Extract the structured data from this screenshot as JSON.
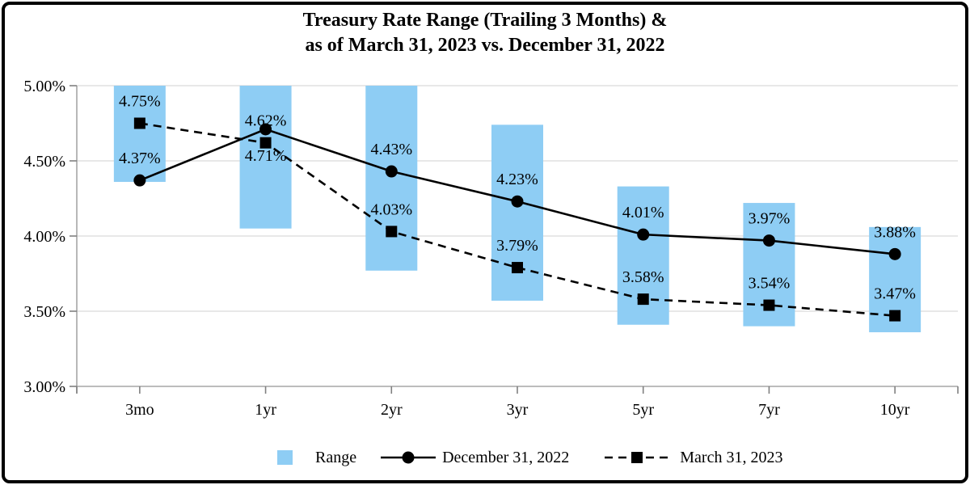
{
  "chart_data": {
    "type": "bar",
    "subtype": "range-bars-with-lines",
    "title_lines": [
      "Treasury Rate Range (Trailing 3 Months) &",
      "as of March 31, 2023 vs. December 31, 2022"
    ],
    "categories": [
      "3mo",
      "1yr",
      "2yr",
      "3yr",
      "5yr",
      "7yr",
      "10yr"
    ],
    "y_axis": {
      "min": 3.0,
      "max": 5.0,
      "step": 0.5,
      "tick_labels": [
        "5.00%",
        "4.50%",
        "4.00%",
        "3.50%",
        "3.00%"
      ],
      "grid": true
    },
    "range_series": {
      "name": "Range",
      "low": [
        4.36,
        4.05,
        3.77,
        3.57,
        3.41,
        3.4,
        3.36
      ],
      "high": [
        5.0,
        5.0,
        5.0,
        4.74,
        4.33,
        4.22,
        4.06
      ]
    },
    "series": [
      {
        "name": "December 31, 2022",
        "line_style": "solid",
        "marker": "circle",
        "values": [
          4.37,
          4.71,
          4.43,
          4.23,
          4.01,
          3.97,
          3.88
        ],
        "labels": [
          "4.37%",
          "4.71%",
          "4.43%",
          "4.23%",
          "4.01%",
          "3.97%",
          "3.88%"
        ],
        "label_placement": [
          "above",
          "below",
          "above",
          "above",
          "above",
          "above",
          "above"
        ]
      },
      {
        "name": "March 31, 2023",
        "line_style": "dashed",
        "marker": "square",
        "values": [
          4.75,
          4.62,
          4.03,
          3.79,
          3.58,
          3.54,
          3.47
        ],
        "labels": [
          "4.75%",
          "4.62%",
          "4.03%",
          "3.79%",
          "3.58%",
          "3.54%",
          "3.47%"
        ],
        "label_placement": [
          "above",
          "above",
          "above",
          "above",
          "above",
          "above",
          "above"
        ]
      }
    ],
    "legend": {
      "position": "bottom",
      "items": [
        {
          "label": "Range"
        },
        {
          "label": "December 31, 2022"
        },
        {
          "label": "March 31, 2023"
        }
      ]
    },
    "colors": {
      "bar": "#8ECDF4",
      "grid": "#D9D9D9",
      "axis": "#A6A6A6",
      "tick": "#808080",
      "line": "#000000",
      "text": "#000000"
    }
  }
}
